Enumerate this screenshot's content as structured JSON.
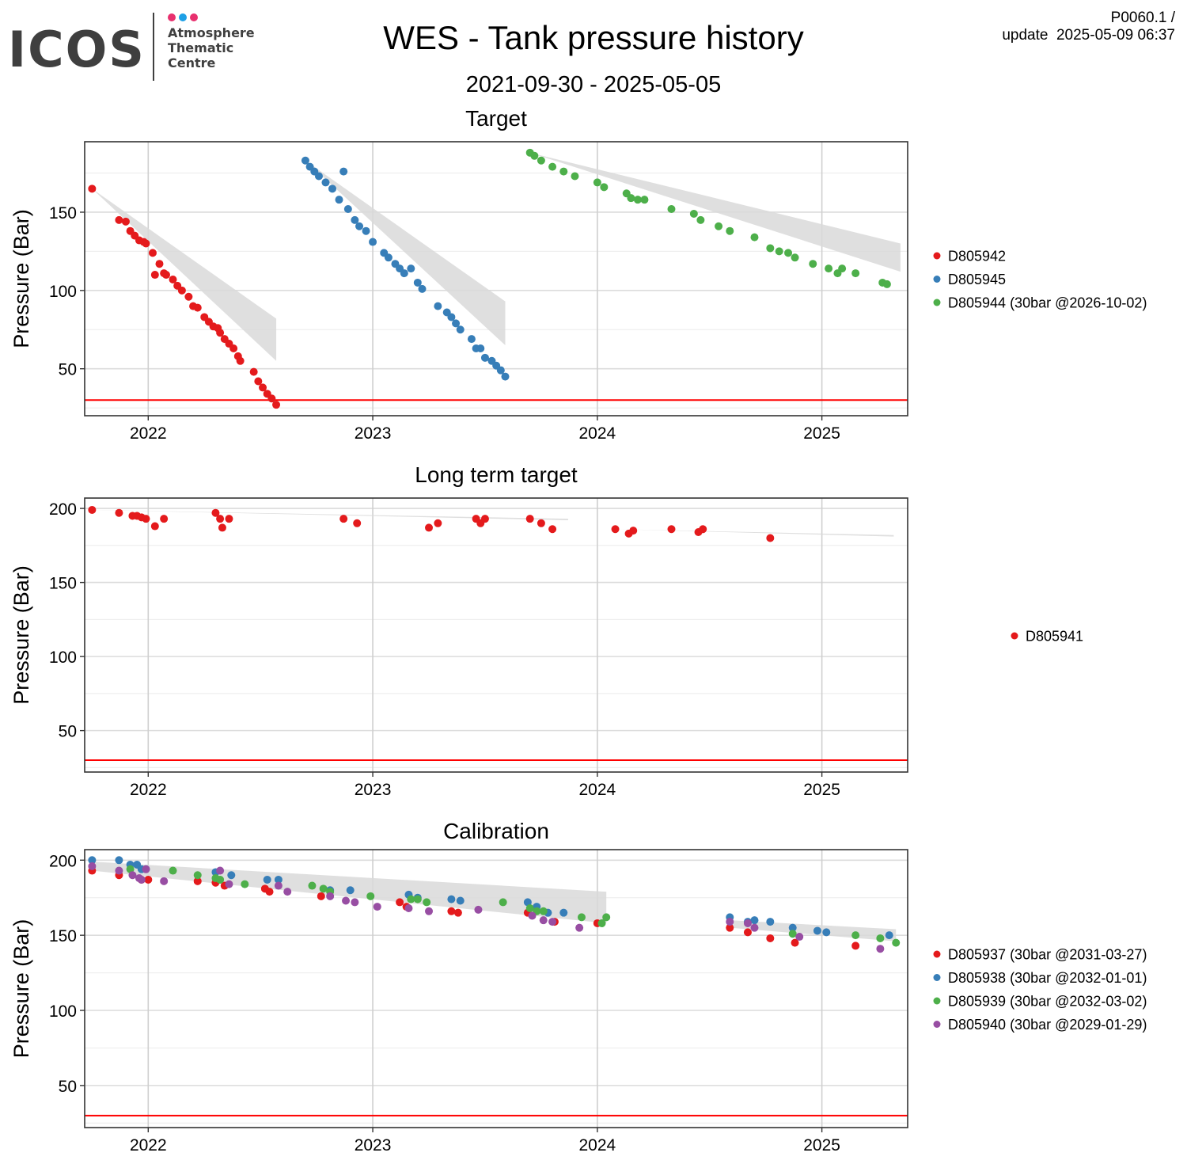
{
  "header": {
    "logo_text": "ICOS",
    "logo_sub": [
      "Atmosphere",
      "Thematic",
      "Centre"
    ],
    "logo_dot_colors": [
      "#e8306e",
      "#1ea0e6",
      "#e8306e"
    ],
    "title": "WES - Tank pressure history",
    "date_range": "2021-09-30 - 2025-05-05",
    "version_line1": "P0060.1 /",
    "version_line2": "update  2025-05-09 06:37"
  },
  "chart_data": [
    {
      "type": "scatter",
      "title": "Target",
      "xlabel": "",
      "ylabel": "Pressure (Bar)",
      "x_ticks": [
        "2022",
        "2023",
        "2024",
        "2025"
      ],
      "y_ticks": [
        50,
        100,
        150
      ],
      "xlim": [
        2021.717,
        2025.382
      ],
      "ylim": [
        20,
        195
      ],
      "grid": true,
      "reference_line": {
        "y": 30,
        "color": "#ff0000"
      },
      "legend_position": "right",
      "series": [
        {
          "name": "D805942",
          "color": "#e41a1c",
          "x": [
            2021.75,
            2021.87,
            2021.9,
            2021.92,
            2021.94,
            2021.96,
            2021.98,
            2021.99,
            2022.02,
            2022.03,
            2022.05,
            2022.07,
            2022.08,
            2022.11,
            2022.13,
            2022.15,
            2022.18,
            2022.2,
            2022.22,
            2022.25,
            2022.27,
            2022.29,
            2022.31,
            2022.32,
            2022.34,
            2022.36,
            2022.38,
            2022.4,
            2022.41,
            2022.47,
            2022.49,
            2022.51,
            2022.53,
            2022.55,
            2022.57
          ],
          "y": [
            165,
            145,
            144,
            138,
            135,
            132,
            131,
            130,
            124,
            110,
            117,
            111,
            110,
            107,
            103,
            100,
            96,
            90,
            89,
            83,
            80,
            77,
            76,
            73,
            69,
            66,
            63,
            58,
            55,
            48,
            42,
            38,
            34,
            31,
            27
          ]
        },
        {
          "name": "D805945",
          "color": "#377eb8",
          "x": [
            2022.7,
            2022.72,
            2022.74,
            2022.76,
            2022.79,
            2022.82,
            2022.85,
            2022.87,
            2022.89,
            2022.92,
            2022.94,
            2022.97,
            2023.0,
            2023.05,
            2023.07,
            2023.1,
            2023.12,
            2023.14,
            2023.17,
            2023.2,
            2023.22,
            2023.29,
            2023.33,
            2023.35,
            2023.37,
            2023.39,
            2023.44,
            2023.46,
            2023.48,
            2023.5,
            2023.53,
            2023.55,
            2023.57,
            2023.59
          ],
          "y": [
            183,
            179,
            176,
            173,
            169,
            165,
            158,
            176,
            152,
            145,
            141,
            138,
            131,
            124,
            121,
            117,
            114,
            111,
            114,
            105,
            101,
            90,
            86,
            83,
            79,
            75,
            69,
            63,
            63,
            57,
            55,
            52,
            49,
            45
          ]
        },
        {
          "name": "D805944 (30bar @2026-10-02)",
          "color": "#4daf4a",
          "x": [
            2023.7,
            2023.72,
            2023.75,
            2023.8,
            2023.85,
            2023.9,
            2024.0,
            2024.03,
            2024.13,
            2024.15,
            2024.18,
            2024.21,
            2024.33,
            2024.43,
            2024.46,
            2024.54,
            2024.59,
            2024.7,
            2024.77,
            2024.81,
            2024.85,
            2024.88,
            2024.96,
            2025.03,
            2025.07,
            2025.09,
            2025.15,
            2025.27,
            2025.29
          ],
          "y": [
            188,
            186,
            183,
            179,
            176,
            173,
            169,
            166,
            162,
            159,
            158,
            158,
            152,
            149,
            145,
            141,
            138,
            134,
            127,
            125,
            124,
            121,
            117,
            114,
            111,
            114,
            111,
            105,
            104
          ]
        }
      ],
      "projection_bands": [
        {
          "series": "D805942",
          "x": [
            2021.75,
            2022.57
          ],
          "upper": [
            165,
            82
          ],
          "lower": [
            165,
            55
          ]
        },
        {
          "series": "D805945",
          "x": [
            2022.7,
            2023.59
          ],
          "upper": [
            183,
            93
          ],
          "lower": [
            183,
            65
          ]
        },
        {
          "series": "D805944 (30bar @2026-10-02)",
          "x": [
            2023.7,
            2025.35
          ],
          "upper": [
            188,
            130
          ],
          "lower": [
            188,
            112
          ]
        }
      ]
    },
    {
      "type": "scatter",
      "title": "Long term target",
      "xlabel": "",
      "ylabel": "Pressure (Bar)",
      "x_ticks": [
        "2022",
        "2023",
        "2024",
        "2025"
      ],
      "y_ticks": [
        50,
        100,
        150,
        200
      ],
      "xlim": [
        2021.717,
        2025.382
      ],
      "ylim": [
        22,
        207
      ],
      "grid": true,
      "reference_line": {
        "y": 30,
        "color": "#ff0000"
      },
      "legend_position": "right",
      "series": [
        {
          "name": "D805941",
          "color": "#e41a1c",
          "x": [
            2021.75,
            2021.87,
            2021.93,
            2021.95,
            2021.97,
            2021.99,
            2022.03,
            2022.07,
            2022.3,
            2022.32,
            2022.33,
            2022.36,
            2022.87,
            2022.93,
            2023.25,
            2023.29,
            2023.46,
            2023.48,
            2023.5,
            2023.7,
            2023.75,
            2023.8,
            2024.08,
            2024.14,
            2024.16,
            2024.33,
            2024.45,
            2024.47,
            2024.77
          ],
          "y": [
            199,
            197,
            195,
            195,
            194,
            193,
            188,
            193,
            197,
            193,
            187,
            193,
            193,
            190,
            187,
            190,
            193,
            190,
            193,
            193,
            190,
            186,
            186,
            183,
            185,
            186,
            184,
            186,
            180
          ]
        }
      ],
      "projection_bands": [
        {
          "series": "D805941",
          "x": [
            2021.75,
            2023.87
          ],
          "upper": [
            199,
            193
          ],
          "lower": [
            199,
            192
          ]
        },
        {
          "series": "D805941",
          "x": [
            2024.08,
            2025.32
          ],
          "upper": [
            186,
            182
          ],
          "lower": [
            186,
            181
          ]
        }
      ]
    },
    {
      "type": "scatter",
      "title": "Calibration",
      "xlabel": "",
      "ylabel": "Pressure (Bar)",
      "x_ticks": [
        "2022",
        "2023",
        "2024",
        "2025"
      ],
      "y_ticks": [
        50,
        100,
        150,
        200
      ],
      "xlim": [
        2021.717,
        2025.382
      ],
      "ylim": [
        22,
        207
      ],
      "grid": true,
      "reference_line": {
        "y": 30,
        "color": "#ff0000"
      },
      "legend_position": "right",
      "series": [
        {
          "name": "D805937 (30bar @2031-03-27)",
          "color": "#e41a1c",
          "x": [
            2021.75,
            2021.87,
            2021.97,
            2022.0,
            2022.22,
            2022.3,
            2022.34,
            2022.52,
            2022.54,
            2022.77,
            2023.12,
            2023.15,
            2023.35,
            2023.38,
            2023.69,
            2023.81,
            2024.0,
            2024.59,
            2024.67,
            2024.77,
            2024.88,
            2025.15
          ],
          "y": [
            193,
            190,
            187,
            187,
            186,
            185,
            183,
            181,
            179,
            176,
            172,
            169,
            166,
            165,
            165,
            159,
            158,
            155,
            152,
            148,
            145,
            143
          ]
        },
        {
          "name": "D805938 (30bar @2032-01-01)",
          "color": "#377eb8",
          "x": [
            2021.75,
            2021.87,
            2021.92,
            2021.95,
            2021.97,
            2021.99,
            2022.3,
            2022.37,
            2022.53,
            2022.58,
            2022.81,
            2022.9,
            2023.16,
            2023.2,
            2023.35,
            2023.39,
            2023.69,
            2023.73,
            2023.78,
            2023.85,
            2024.59,
            2024.67,
            2024.7,
            2024.77,
            2024.87,
            2024.98,
            2025.02,
            2025.3
          ],
          "y": [
            200,
            200,
            197,
            197,
            194,
            194,
            192,
            190,
            187,
            187,
            180,
            180,
            177,
            175,
            174,
            173,
            172,
            169,
            165,
            165,
            162,
            159,
            160,
            159,
            155,
            153,
            152,
            150
          ]
        },
        {
          "name": "D805939 (30bar @2032-03-02)",
          "color": "#4daf4a",
          "x": [
            2021.92,
            2022.11,
            2022.22,
            2022.3,
            2022.32,
            2022.43,
            2022.73,
            2022.78,
            2022.81,
            2022.99,
            2023.17,
            2023.2,
            2023.24,
            2023.58,
            2023.7,
            2023.73,
            2023.76,
            2023.93,
            2024.02,
            2024.04,
            2024.87,
            2025.15,
            2025.26,
            2025.33
          ],
          "y": [
            194,
            193,
            190,
            188,
            187,
            184,
            183,
            181,
            179,
            176,
            174,
            174,
            172,
            172,
            168,
            166,
            166,
            162,
            158,
            162,
            151,
            150,
            148,
            145
          ]
        },
        {
          "name": "D805940 (30bar @2029-01-29)",
          "color": "#984ea3",
          "x": [
            2021.75,
            2021.87,
            2021.93,
            2021.96,
            2021.97,
            2021.99,
            2022.07,
            2022.32,
            2022.36,
            2022.58,
            2022.62,
            2022.81,
            2022.88,
            2022.92,
            2023.02,
            2023.16,
            2023.25,
            2023.47,
            2023.71,
            2023.76,
            2023.8,
            2023.92,
            2024.59,
            2024.67,
            2024.7,
            2024.9,
            2025.26
          ],
          "y": [
            196,
            193,
            190,
            188,
            187,
            194,
            186,
            193,
            184,
            183,
            179,
            176,
            173,
            172,
            169,
            168,
            166,
            167,
            163,
            160,
            159,
            155,
            159,
            158,
            155,
            149,
            141
          ]
        }
      ],
      "projection_bands": [
        {
          "series": "calibration-2021-2024",
          "x": [
            2021.75,
            2024.04
          ],
          "upper": [
            199,
            179
          ],
          "lower": [
            193,
            158
          ]
        },
        {
          "series": "calibration-2024-2025",
          "x": [
            2024.59,
            2025.33
          ],
          "upper": [
            160,
            154
          ],
          "lower": [
            155,
            146
          ]
        }
      ]
    }
  ]
}
